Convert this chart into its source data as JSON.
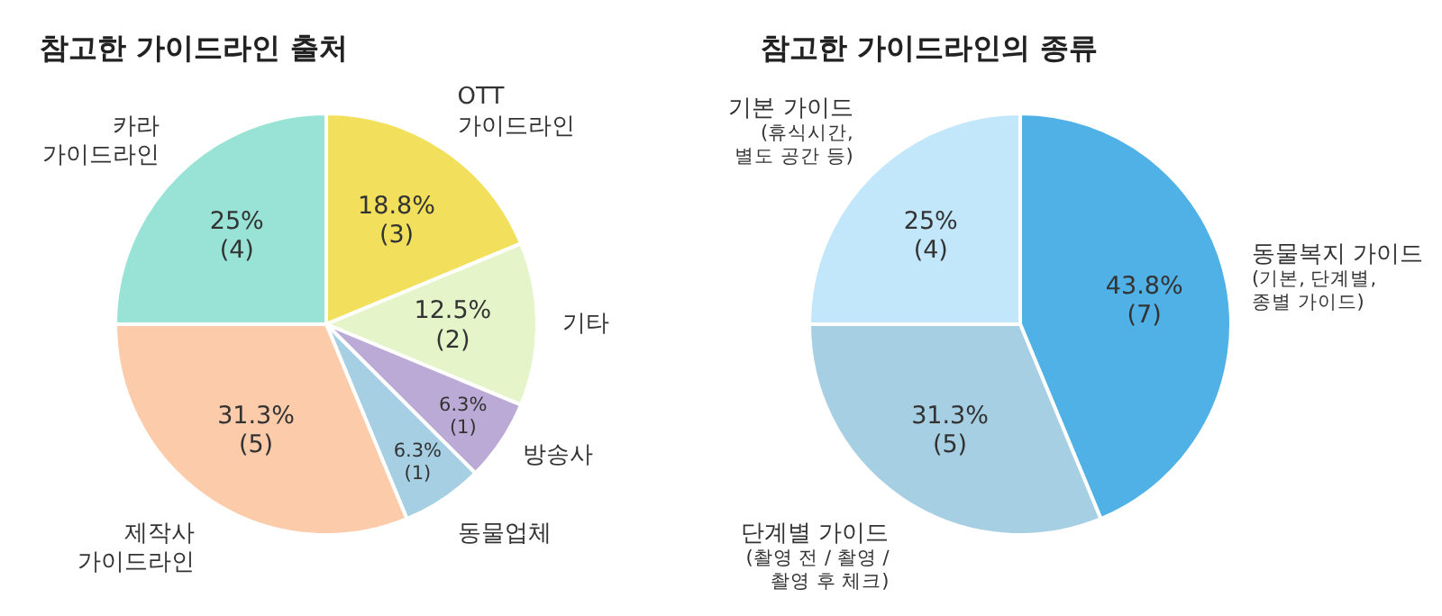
{
  "chart_data": [
    {
      "type": "pie",
      "title": "참고한 가이드라인 출처",
      "categories": [
        "OTT\n가이드라인",
        "기타",
        "방송사",
        "동물업체",
        "제작사\n가이드라인",
        "카라\n가이드라인"
      ],
      "values": [
        3,
        2,
        1,
        1,
        5,
        4
      ],
      "value_labels": [
        "18.8%\n(3)",
        "12.5%\n(2)",
        "6.3%\n(1)",
        "6.3%\n(1)",
        "31.3%\n(5)",
        "25%\n(4)"
      ],
      "colors": [
        "#f2e05c",
        "#e5f5c9",
        "#bcaad6",
        "#a6cfe3",
        "#fccba9",
        "#98e3d6"
      ]
    },
    {
      "type": "pie",
      "title": "참고한 가이드라인의 종류",
      "categories": [
        "동물복지 가이드\n(기본, 단계별,\n종별 가이드)",
        "단계별 가이드\n(촬영 전 / 촬영 /\n촬영 후 체크)",
        "기본 가이드\n(휴식시간,\n별도 공간 등)"
      ],
      "values": [
        7,
        5,
        4
      ],
      "value_labels": [
        "43.8%\n(7)",
        "31.3%\n(5)",
        "25%\n(4)"
      ],
      "colors": [
        "#4fb1e5",
        "#a6cfe3",
        "#c2e7fb"
      ]
    }
  ]
}
